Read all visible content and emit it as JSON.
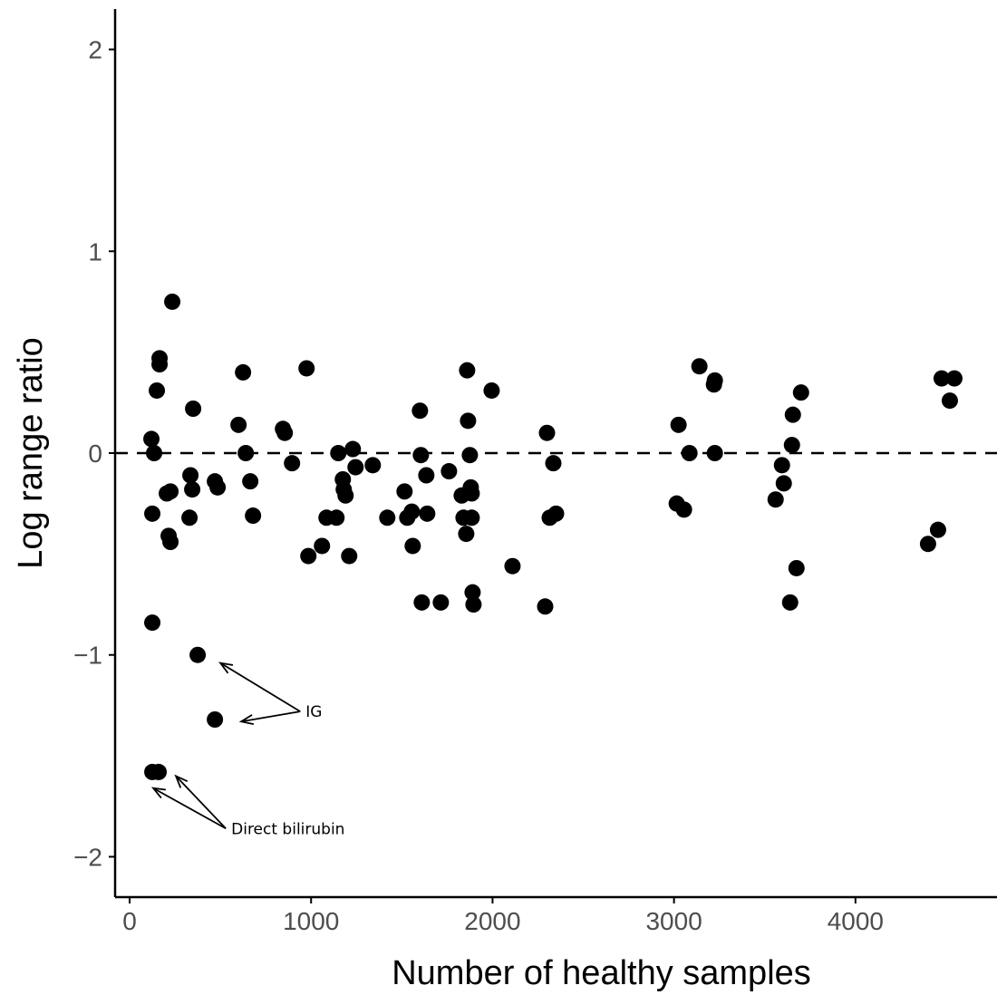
{
  "chart_data": {
    "type": "scatter",
    "title": "",
    "xlabel": "Number of healthy samples",
    "ylabel": "Log range ratio",
    "xlim": [
      -80,
      4780
    ],
    "ylim": [
      -2.2,
      2.2
    ],
    "xticks": [
      0,
      1000,
      2000,
      3000,
      4000
    ],
    "xtick_labels": [
      "0",
      "1000",
      "2000",
      "3000",
      "4000"
    ],
    "yticks": [
      -2,
      -1,
      0,
      1,
      2
    ],
    "ytick_labels": [
      "−2",
      "−1",
      "0",
      "1",
      "2"
    ],
    "grid": false,
    "reference_line": {
      "y": 0,
      "style": "dashed"
    },
    "points": [
      [
        235,
        0.75
      ],
      [
        165,
        0.47
      ],
      [
        165,
        0.44
      ],
      [
        150,
        0.31
      ],
      [
        350,
        0.22
      ],
      [
        120,
        0.07
      ],
      [
        135,
        0.0
      ],
      [
        125,
        -0.3
      ],
      [
        225,
        -0.19
      ],
      [
        205,
        -0.2
      ],
      [
        215,
        -0.41
      ],
      [
        225,
        -0.44
      ],
      [
        335,
        -0.11
      ],
      [
        345,
        -0.18
      ],
      [
        330,
        -0.32
      ],
      [
        470,
        -0.14
      ],
      [
        485,
        -0.17
      ],
      [
        125,
        -0.84
      ],
      [
        375,
        -1.0
      ],
      [
        470,
        -1.32
      ],
      [
        125,
        -1.58
      ],
      [
        160,
        -1.58
      ],
      [
        625,
        0.4
      ],
      [
        600,
        0.14
      ],
      [
        640,
        0.0
      ],
      [
        665,
        -0.14
      ],
      [
        680,
        -0.31
      ],
      [
        845,
        0.12
      ],
      [
        855,
        0.1
      ],
      [
        895,
        -0.05
      ],
      [
        975,
        0.42
      ],
      [
        985,
        -0.51
      ],
      [
        1060,
        -0.46
      ],
      [
        1085,
        -0.32
      ],
      [
        1140,
        -0.32
      ],
      [
        1150,
        0.0
      ],
      [
        1175,
        -0.13
      ],
      [
        1180,
        -0.18
      ],
      [
        1190,
        -0.21
      ],
      [
        1210,
        -0.51
      ],
      [
        1230,
        0.02
      ],
      [
        1245,
        -0.07
      ],
      [
        1340,
        -0.06
      ],
      [
        1420,
        -0.32
      ],
      [
        1515,
        -0.19
      ],
      [
        1530,
        -0.32
      ],
      [
        1555,
        -0.29
      ],
      [
        1560,
        -0.46
      ],
      [
        1600,
        0.21
      ],
      [
        1605,
        -0.01
      ],
      [
        1610,
        -0.74
      ],
      [
        1635,
        -0.11
      ],
      [
        1640,
        -0.3
      ],
      [
        1715,
        -0.74
      ],
      [
        1760,
        -0.09
      ],
      [
        1830,
        -0.21
      ],
      [
        1840,
        -0.32
      ],
      [
        1855,
        -0.4
      ],
      [
        1860,
        0.41
      ],
      [
        1865,
        0.16
      ],
      [
        1875,
        -0.01
      ],
      [
        1880,
        -0.17
      ],
      [
        1885,
        -0.2
      ],
      [
        1885,
        -0.32
      ],
      [
        1890,
        -0.69
      ],
      [
        1895,
        -0.75
      ],
      [
        1995,
        0.31
      ],
      [
        2110,
        -0.56
      ],
      [
        2290,
        -0.76
      ],
      [
        2300,
        0.1
      ],
      [
        2315,
        -0.32
      ],
      [
        2335,
        -0.05
      ],
      [
        2350,
        -0.3
      ],
      [
        3015,
        -0.25
      ],
      [
        3025,
        0.14
      ],
      [
        3055,
        -0.28
      ],
      [
        3085,
        0.0
      ],
      [
        3140,
        0.43
      ],
      [
        3220,
        0.34
      ],
      [
        3225,
        0.36
      ],
      [
        3225,
        0.0
      ],
      [
        3560,
        -0.23
      ],
      [
        3595,
        -0.06
      ],
      [
        3605,
        -0.15
      ],
      [
        3640,
        -0.74
      ],
      [
        3650,
        0.04
      ],
      [
        3655,
        0.19
      ],
      [
        3675,
        -0.57
      ],
      [
        3700,
        0.3
      ],
      [
        4400,
        -0.45
      ],
      [
        4455,
        -0.38
      ],
      [
        4475,
        0.37
      ],
      [
        4520,
        0.26
      ],
      [
        4545,
        0.37
      ]
    ],
    "annotations": [
      {
        "text": "IG",
        "x": 950,
        "y": -1.28,
        "arrows_to": [
          [
            500,
            -1.04
          ],
          [
            615,
            -1.33
          ]
        ]
      },
      {
        "text": "Direct bilirubin",
        "x": 540,
        "y": -1.86,
        "arrows_to": [
          [
            130,
            -1.66
          ],
          [
            255,
            -1.6
          ]
        ]
      }
    ]
  }
}
